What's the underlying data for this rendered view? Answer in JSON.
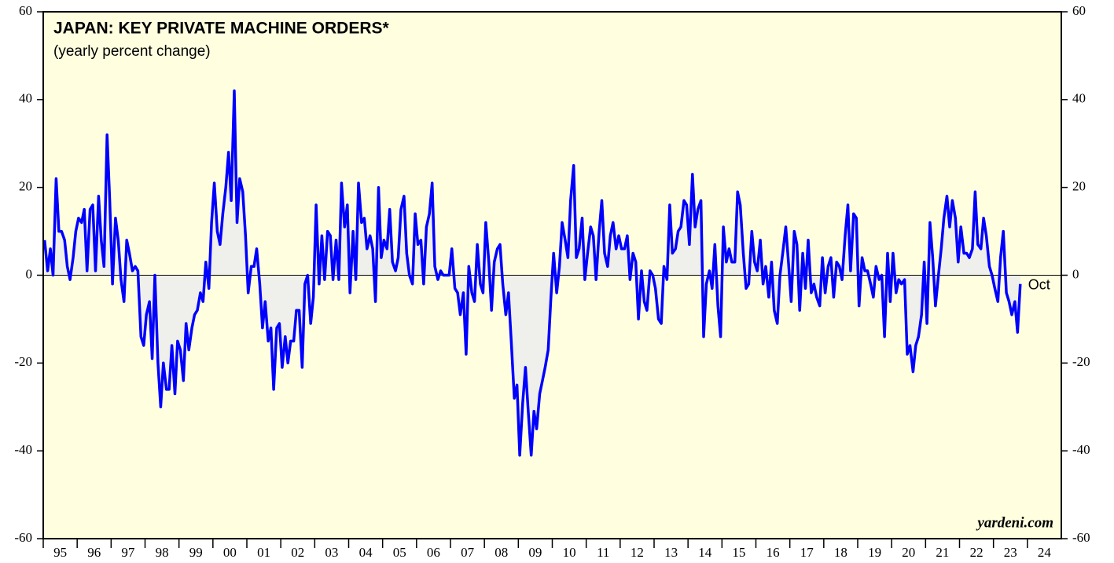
{
  "chart_data": {
    "type": "line",
    "title": "JAPAN: KEY PRIVATE MACHINE ORDERS*",
    "subtitle": "(yearly percent change)",
    "annotations": [
      "Oct",
      "yardeni.com"
    ],
    "xlim": [
      1995,
      2025
    ],
    "xticks": [
      {
        "value": 1995.5,
        "label": "95"
      },
      {
        "value": 1996.5,
        "label": "96"
      },
      {
        "value": 1997.5,
        "label": "97"
      },
      {
        "value": 1998.5,
        "label": "98"
      },
      {
        "value": 1999.5,
        "label": "99"
      },
      {
        "value": 2000.5,
        "label": "00"
      },
      {
        "value": 2001.5,
        "label": "01"
      },
      {
        "value": 2002.5,
        "label": "02"
      },
      {
        "value": 2003.5,
        "label": "03"
      },
      {
        "value": 2004.5,
        "label": "04"
      },
      {
        "value": 2005.5,
        "label": "05"
      },
      {
        "value": 2006.5,
        "label": "06"
      },
      {
        "value": 2007.5,
        "label": "07"
      },
      {
        "value": 2008.5,
        "label": "08"
      },
      {
        "value": 2009.5,
        "label": "09"
      },
      {
        "value": 2010.5,
        "label": "10"
      },
      {
        "value": 2011.5,
        "label": "11"
      },
      {
        "value": 2012.5,
        "label": "12"
      },
      {
        "value": 2013.5,
        "label": "13"
      },
      {
        "value": 2014.5,
        "label": "14"
      },
      {
        "value": 2015.5,
        "label": "15"
      },
      {
        "value": 2016.5,
        "label": "16"
      },
      {
        "value": 2017.5,
        "label": "17"
      },
      {
        "value": 2018.5,
        "label": "18"
      },
      {
        "value": 2019.5,
        "label": "19"
      },
      {
        "value": 2020.5,
        "label": "20"
      },
      {
        "value": 2021.5,
        "label": "21"
      },
      {
        "value": 2022.5,
        "label": "22"
      },
      {
        "value": 2023.5,
        "label": "23"
      },
      {
        "value": 2024.5,
        "label": "24"
      }
    ],
    "ylim": [
      -60,
      60
    ],
    "yticks": [
      -60,
      -40,
      -20,
      0,
      20,
      40,
      60
    ],
    "series": [
      {
        "name": "Key private machine orders",
        "color": "#0000ff",
        "x": [
          1995.04,
          1995.13,
          1995.21,
          1995.29,
          1995.38,
          1995.46,
          1995.54,
          1995.63,
          1995.71,
          1995.79,
          1995.88,
          1995.96,
          1996.04,
          1996.13,
          1996.21,
          1996.29,
          1996.38,
          1996.46,
          1996.54,
          1996.63,
          1996.71,
          1996.79,
          1996.88,
          1996.96,
          1997.04,
          1997.13,
          1997.21,
          1997.29,
          1997.38,
          1997.46,
          1997.54,
          1997.63,
          1997.71,
          1997.79,
          1997.88,
          1997.96,
          1998.04,
          1998.13,
          1998.21,
          1998.29,
          1998.38,
          1998.46,
          1998.54,
          1998.63,
          1998.71,
          1998.79,
          1998.88,
          1998.96,
          1999.04,
          1999.13,
          1999.21,
          1999.29,
          1999.38,
          1999.46,
          1999.54,
          1999.63,
          1999.71,
          1999.79,
          1999.88,
          1999.96,
          2000.04,
          2000.13,
          2000.21,
          2000.29,
          2000.38,
          2000.46,
          2000.54,
          2000.63,
          2000.71,
          2000.79,
          2000.88,
          2000.96,
          2001.04,
          2001.13,
          2001.21,
          2001.29,
          2001.38,
          2001.46,
          2001.54,
          2001.63,
          2001.71,
          2001.79,
          2001.88,
          2001.96,
          2002.04,
          2002.13,
          2002.21,
          2002.29,
          2002.38,
          2002.46,
          2002.54,
          2002.63,
          2002.71,
          2002.79,
          2002.88,
          2002.96,
          2003.04,
          2003.13,
          2003.21,
          2003.29,
          2003.38,
          2003.46,
          2003.54,
          2003.63,
          2003.71,
          2003.79,
          2003.88,
          2003.96,
          2004.04,
          2004.13,
          2004.21,
          2004.29,
          2004.38,
          2004.46,
          2004.54,
          2004.63,
          2004.71,
          2004.79,
          2004.88,
          2004.96,
          2005.04,
          2005.13,
          2005.21,
          2005.29,
          2005.38,
          2005.46,
          2005.54,
          2005.63,
          2005.71,
          2005.79,
          2005.88,
          2005.96,
          2006.04,
          2006.13,
          2006.21,
          2006.29,
          2006.38,
          2006.46,
          2006.54,
          2006.63,
          2006.71,
          2006.79,
          2006.88,
          2006.96,
          2007.04,
          2007.13,
          2007.21,
          2007.29,
          2007.38,
          2007.46,
          2007.54,
          2007.63,
          2007.71,
          2007.79,
          2007.88,
          2007.96,
          2008.04,
          2008.13,
          2008.21,
          2008.29,
          2008.38,
          2008.46,
          2008.54,
          2008.63,
          2008.71,
          2008.79,
          2008.88,
          2008.96,
          2009.04,
          2009.13,
          2009.21,
          2009.29,
          2009.38,
          2009.46,
          2009.54,
          2009.63,
          2009.71,
          2009.79,
          2009.88,
          2009.96,
          2010.04,
          2010.13,
          2010.21,
          2010.29,
          2010.38,
          2010.46,
          2010.54,
          2010.63,
          2010.71,
          2010.79,
          2010.88,
          2010.96,
          2011.04,
          2011.13,
          2011.21,
          2011.29,
          2011.38,
          2011.46,
          2011.54,
          2011.63,
          2011.71,
          2011.79,
          2011.88,
          2011.96,
          2012.04,
          2012.13,
          2012.21,
          2012.29,
          2012.38,
          2012.46,
          2012.54,
          2012.63,
          2012.71,
          2012.79,
          2012.88,
          2012.96,
          2013.04,
          2013.13,
          2013.21,
          2013.29,
          2013.38,
          2013.46,
          2013.54,
          2013.63,
          2013.71,
          2013.79,
          2013.88,
          2013.96,
          2014.04,
          2014.13,
          2014.21,
          2014.29,
          2014.38,
          2014.46,
          2014.54,
          2014.63,
          2014.71,
          2014.79,
          2014.88,
          2014.96,
          2015.04,
          2015.13,
          2015.21,
          2015.29,
          2015.38,
          2015.46,
          2015.54,
          2015.63,
          2015.71,
          2015.79,
          2015.88,
          2015.96,
          2016.04,
          2016.13,
          2016.21,
          2016.29,
          2016.38,
          2016.46,
          2016.54,
          2016.63,
          2016.71,
          2016.79,
          2016.88,
          2016.96,
          2017.04,
          2017.13,
          2017.21,
          2017.29,
          2017.38,
          2017.46,
          2017.54,
          2017.63,
          2017.71,
          2017.79,
          2017.88,
          2017.96,
          2018.04,
          2018.13,
          2018.21,
          2018.29,
          2018.38,
          2018.46,
          2018.54,
          2018.63,
          2018.71,
          2018.79,
          2018.88,
          2018.96,
          2019.04,
          2019.13,
          2019.21,
          2019.29,
          2019.38,
          2019.46,
          2019.54,
          2019.63,
          2019.71,
          2019.79,
          2019.88,
          2019.96,
          2020.04,
          2020.13,
          2020.21,
          2020.29,
          2020.38,
          2020.46,
          2020.54,
          2020.63,
          2020.71,
          2020.79,
          2020.88,
          2020.96,
          2021.04,
          2021.13,
          2021.21,
          2021.29,
          2021.38,
          2021.46,
          2021.54,
          2021.63,
          2021.71,
          2021.79,
          2021.88,
          2021.96,
          2022.04,
          2022.13,
          2022.21,
          2022.29,
          2022.38,
          2022.46,
          2022.54,
          2022.63,
          2022.71,
          2022.79,
          2022.88,
          2022.96,
          2023.04,
          2023.13,
          2023.21,
          2023.29,
          2023.38,
          2023.46,
          2023.54,
          2023.63,
          2023.71,
          2023.79
        ],
        "values": [
          8,
          1,
          6,
          0,
          22,
          10,
          10,
          8,
          2,
          -1,
          4,
          10,
          13,
          12,
          15,
          1,
          15,
          16,
          1,
          18,
          8,
          2,
          32,
          17,
          -2,
          13,
          8,
          -1,
          -6,
          8,
          5,
          1,
          2,
          1,
          -14,
          -16,
          -9,
          -6,
          -19,
          0,
          -20,
          -30,
          -20,
          -26,
          -26,
          -16,
          -27,
          -15,
          -17,
          -24,
          -11,
          -17,
          -12,
          -9,
          -8,
          -4,
          -6,
          3,
          -3,
          12,
          21,
          10,
          7,
          14,
          20,
          28,
          17,
          42,
          12,
          22,
          19,
          9,
          -4,
          2,
          2,
          6,
          -2,
          -12,
          -6,
          -15,
          -12,
          -26,
          -12,
          -11,
          -21,
          -14,
          -20,
          -15,
          -15,
          -8,
          -8,
          -21,
          -2,
          0,
          -11,
          -5,
          16,
          -2,
          9,
          -1,
          10,
          9,
          -1,
          8,
          -1,
          21,
          11,
          16,
          -4,
          10,
          -1,
          21,
          12,
          13,
          6,
          9,
          6,
          -6,
          20,
          4,
          8,
          6,
          15,
          3,
          1,
          4,
          15,
          18,
          5,
          0,
          -2,
          14,
          7,
          8,
          -2,
          11,
          14,
          21,
          2,
          -1,
          1,
          0,
          0,
          0,
          6,
          -3,
          -4,
          -9,
          -4,
          -18,
          2,
          -4,
          -6,
          7,
          -2,
          -4,
          12,
          3,
          -8,
          3,
          6,
          7,
          -2,
          -9,
          -4,
          -15,
          -28,
          -25,
          -41,
          -29,
          -21,
          -31,
          -41,
          -31,
          -35,
          -27,
          -24,
          -21,
          -17,
          -5,
          5,
          -4,
          2,
          12,
          8,
          4,
          17,
          25,
          4,
          6,
          13,
          -1,
          5,
          11,
          9,
          -1,
          10,
          17,
          5,
          2,
          9,
          12,
          6,
          9,
          6,
          6,
          9,
          -1,
          5,
          3,
          -10,
          1,
          -6,
          -8,
          1,
          0,
          -3,
          -10,
          -11,
          2,
          -1,
          16,
          5,
          6,
          10,
          11,
          17,
          16,
          7,
          23,
          11,
          15,
          17,
          -14,
          -2,
          1,
          -3,
          7,
          -7,
          -14,
          11,
          3,
          6,
          3,
          3,
          19,
          16,
          5,
          -3,
          -2,
          10,
          3,
          1,
          8,
          -2,
          2,
          -5,
          3,
          -8,
          -11,
          0,
          5,
          11,
          3,
          -6,
          10,
          7,
          -8,
          5,
          -3,
          8,
          -4,
          -2,
          -5,
          -7,
          4,
          -4,
          2,
          4,
          -5,
          3,
          2,
          -1,
          9,
          16,
          1,
          14,
          13,
          -7,
          4,
          1,
          1,
          -2,
          -5,
          2,
          -1,
          0,
          -14,
          5,
          -6,
          5,
          -4,
          -1,
          -2,
          -1,
          -18,
          -16,
          -22,
          -16,
          -14,
          -9,
          3,
          -11,
          12,
          4,
          -7,
          0,
          6,
          13,
          18,
          11,
          17,
          13,
          3,
          11,
          5,
          5,
          4,
          6,
          19,
          7,
          6,
          13,
          9,
          2,
          0,
          -3,
          -6,
          4,
          10,
          -4,
          -6,
          -9,
          -6,
          -13,
          -2
        ]
      }
    ]
  }
}
